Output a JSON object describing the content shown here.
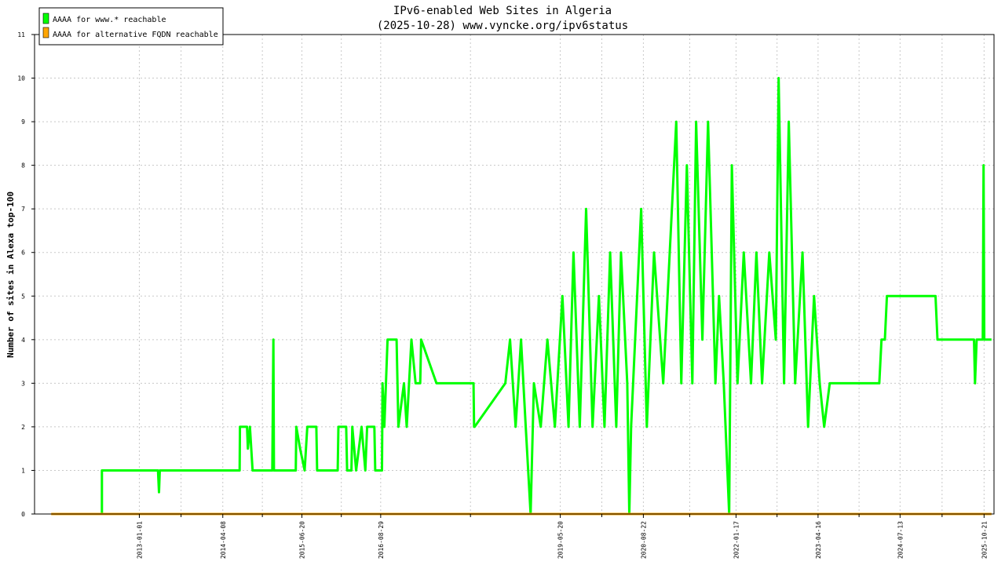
{
  "chart_data": {
    "type": "line",
    "title": "IPv6-enabled Web Sites in Algeria",
    "subtitle": "(2025-10-28) www.vyncke.org/ipv6status",
    "xlabel": "",
    "ylabel": "Number of sites in Alexa top-100",
    "ylim": [
      0,
      11
    ],
    "yticks": [
      "0",
      "1",
      "2",
      "3",
      "4",
      "5",
      "6",
      "7",
      "8",
      "9",
      "10",
      "11"
    ],
    "xlim": [
      "2011-06-01",
      "2025-12-15"
    ],
    "xticks": [
      "2013-01-01",
      "2014-04-08",
      "2015-06-20",
      "2016-08-29",
      "2019-05-20",
      "2020-08-22",
      "2022-01-17",
      "2023-04-16",
      "2024-07-13",
      "2025-10-21"
    ],
    "grid": true,
    "legend_position": "top-left",
    "colors": {
      "www": "#00ff00",
      "alt": "#ffa500"
    },
    "series": [
      {
        "name": "AAAA for www.* reachable",
        "color": "#00ff00",
        "points": [
          [
            "2012-06-08",
            0
          ],
          [
            "2012-06-08",
            1
          ],
          [
            "2013-04-14",
            1
          ],
          [
            "2013-04-20",
            0.5
          ],
          [
            "2013-04-24",
            1
          ],
          [
            "2014-07-10",
            1
          ],
          [
            "2014-07-12",
            2
          ],
          [
            "2014-08-20",
            2
          ],
          [
            "2014-08-25",
            1.5
          ],
          [
            "2014-09-05",
            2
          ],
          [
            "2014-09-20",
            1
          ],
          [
            "2015-01-07",
            1
          ],
          [
            "2015-01-10",
            2.5
          ],
          [
            "2015-01-13",
            4
          ],
          [
            "2015-01-16",
            1
          ],
          [
            "2015-05-17",
            1
          ],
          [
            "2015-05-20",
            2
          ],
          [
            "2015-06-10",
            1.5
          ],
          [
            "2015-07-05",
            1
          ],
          [
            "2015-07-20",
            2
          ],
          [
            "2015-09-08",
            2
          ],
          [
            "2015-09-12",
            1
          ],
          [
            "2016-01-04",
            1
          ],
          [
            "2016-01-08",
            2
          ],
          [
            "2016-02-20",
            2
          ],
          [
            "2016-02-25",
            1
          ],
          [
            "2016-03-20",
            1
          ],
          [
            "2016-03-25",
            2
          ],
          [
            "2016-04-15",
            1
          ],
          [
            "2016-05-15",
            2
          ],
          [
            "2016-06-05",
            1
          ],
          [
            "2016-06-15",
            2
          ],
          [
            "2016-07-25",
            2
          ],
          [
            "2016-07-30",
            1
          ],
          [
            "2016-09-05",
            1
          ],
          [
            "2016-09-08",
            3
          ],
          [
            "2016-09-18",
            2
          ],
          [
            "2016-10-06",
            4
          ],
          [
            "2016-11-25",
            4
          ],
          [
            "2016-12-05",
            2
          ],
          [
            "2017-01-05",
            3
          ],
          [
            "2017-01-20",
            2
          ],
          [
            "2017-02-15",
            4
          ],
          [
            "2017-03-10",
            3
          ],
          [
            "2017-04-05",
            3
          ],
          [
            "2017-04-10",
            4
          ],
          [
            "2017-07-04",
            3
          ],
          [
            "2018-01-25",
            3
          ],
          [
            "2018-01-28",
            2
          ],
          [
            "2018-01-31",
            2
          ],
          [
            "2018-07-20",
            3
          ],
          [
            "2018-08-15",
            4
          ],
          [
            "2018-09-15",
            2
          ],
          [
            "2018-10-15",
            4
          ],
          [
            "2018-11-10",
            2
          ],
          [
            "2018-12-07",
            0
          ],
          [
            "2018-12-25",
            3
          ],
          [
            "2019-02-01",
            2
          ],
          [
            "2019-03-10",
            4
          ],
          [
            "2019-04-20",
            2
          ],
          [
            "2019-06-01",
            5
          ],
          [
            "2019-07-05",
            2
          ],
          [
            "2019-08-01",
            6
          ],
          [
            "2019-09-05",
            2
          ],
          [
            "2019-10-10",
            7
          ],
          [
            "2019-11-15",
            2
          ],
          [
            "2019-12-20",
            5
          ],
          [
            "2020-01-20",
            2
          ],
          [
            "2020-02-20",
            6
          ],
          [
            "2020-03-25",
            2
          ],
          [
            "2020-04-20",
            6
          ],
          [
            "2020-05-25",
            3
          ],
          [
            "2020-06-05",
            0
          ],
          [
            "2020-06-15",
            2
          ],
          [
            "2020-08-10",
            7
          ],
          [
            "2020-09-10",
            2
          ],
          [
            "2020-10-20",
            6
          ],
          [
            "2020-12-10",
            3
          ],
          [
            "2021-01-15",
            6
          ],
          [
            "2021-02-20",
            9
          ],
          [
            "2021-03-20",
            3
          ],
          [
            "2021-04-20",
            8
          ],
          [
            "2021-05-20",
            3
          ],
          [
            "2021-06-10",
            9
          ],
          [
            "2021-07-15",
            4
          ],
          [
            "2021-08-15",
            9
          ],
          [
            "2021-09-25",
            3
          ],
          [
            "2021-10-15",
            5
          ],
          [
            "2021-11-10",
            3
          ],
          [
            "2021-12-10",
            0
          ],
          [
            "2021-12-25",
            8
          ],
          [
            "2022-01-25",
            3
          ],
          [
            "2022-03-01",
            6
          ],
          [
            "2022-04-10",
            3
          ],
          [
            "2022-05-10",
            6
          ],
          [
            "2022-06-10",
            3
          ],
          [
            "2022-07-20",
            6
          ],
          [
            "2022-08-25",
            4
          ],
          [
            "2022-09-10",
            10
          ],
          [
            "2022-10-10",
            3
          ],
          [
            "2022-11-05",
            9
          ],
          [
            "2022-12-10",
            3
          ],
          [
            "2023-01-20",
            6
          ],
          [
            "2023-02-20",
            2
          ],
          [
            "2023-03-25",
            5
          ],
          [
            "2023-04-25",
            3
          ],
          [
            "2023-05-20",
            2
          ],
          [
            "2023-06-20",
            3
          ],
          [
            "2024-03-20",
            3
          ],
          [
            "2024-04-01",
            4
          ],
          [
            "2024-04-20",
            4
          ],
          [
            "2024-05-01",
            5
          ],
          [
            "2025-01-25",
            5
          ],
          [
            "2025-02-05",
            4
          ],
          [
            "2025-08-26",
            4
          ],
          [
            "2025-09-01",
            3
          ],
          [
            "2025-09-10",
            4
          ],
          [
            "2025-10-14",
            4
          ],
          [
            "2025-10-18",
            8
          ],
          [
            "2025-10-22",
            4
          ],
          [
            "2025-12-01",
            4
          ]
        ]
      },
      {
        "name": "AAAA for alternative FQDN reachable",
        "color": "#ffa500",
        "points": [
          [
            "2011-09-01",
            0
          ],
          [
            "2025-12-01",
            0
          ]
        ]
      }
    ]
  }
}
